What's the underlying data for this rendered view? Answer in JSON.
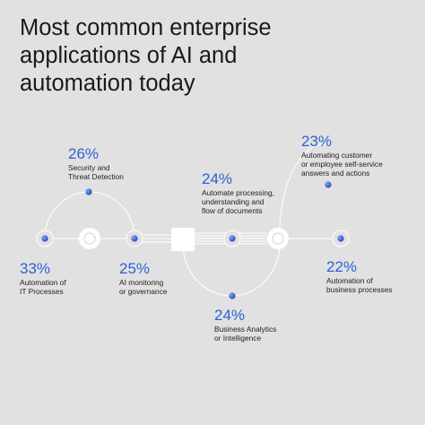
{
  "title_lines": [
    "Most common enterprise",
    "applications of AI and",
    "automation today"
  ],
  "accent_color": "#2d62d2",
  "stats": [
    {
      "value": "26%",
      "lines": [
        "Security and",
        "Threat Detection"
      ]
    },
    {
      "value": "23%",
      "lines": [
        "Automating customer",
        "or employee self-service",
        "answers and actions"
      ]
    },
    {
      "value": "24%",
      "lines": [
        "Automate processing,",
        "understanding and",
        "flow of documents"
      ]
    },
    {
      "value": "33%",
      "lines": [
        "Automation of",
        "IT Processes"
      ]
    },
    {
      "value": "25%",
      "lines": [
        "AI monitoring",
        "or governance"
      ]
    },
    {
      "value": "22%",
      "lines": [
        "Automation of",
        "business processes"
      ]
    },
    {
      "value": "24%",
      "lines": [
        "Business Analytics",
        "or Intelligence"
      ]
    }
  ]
}
